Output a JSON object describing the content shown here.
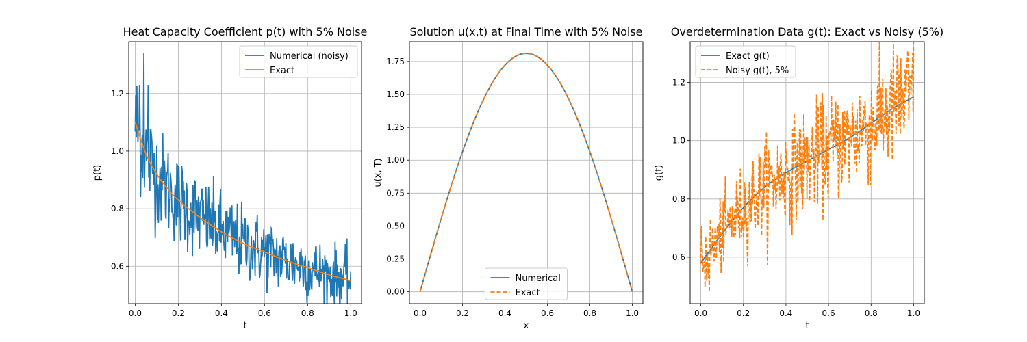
{
  "chart_data": [
    {
      "type": "line",
      "title": "Heat Capacity Coefficient p(t) with 5% Noise",
      "xlabel": "t",
      "ylabel": "p(t)",
      "xlim": [
        -0.03,
        1.05
      ],
      "ylim": [
        0.47,
        1.38
      ],
      "xticks": [
        0.0,
        0.2,
        0.4,
        0.6,
        0.8,
        1.0
      ],
      "yticks": [
        0.6,
        0.8,
        1.0,
        1.2
      ],
      "grid": true,
      "legend_position": "upper right",
      "series": [
        {
          "name": "Numerical (noisy)",
          "color": "#1f77b4",
          "style": "solid",
          "model": "exact_plus_noise",
          "points": 400,
          "noise_fraction": 0.05,
          "highlights": [
            [
              0.04,
              1.34
            ],
            [
              0.06,
              1.23
            ],
            [
              0.02,
              1.23
            ]
          ]
        },
        {
          "name": "Exact",
          "color": "#ff7f0e",
          "style": "solid",
          "x": [
            0.0,
            0.05,
            0.1,
            0.15,
            0.2,
            0.3,
            0.4,
            0.5,
            0.6,
            0.7,
            0.8,
            0.9,
            1.0
          ],
          "y": [
            1.1,
            0.99,
            0.92,
            0.87,
            0.83,
            0.77,
            0.72,
            0.68,
            0.65,
            0.62,
            0.595,
            0.57,
            0.55
          ]
        }
      ]
    },
    {
      "type": "line",
      "title": "Solution u(x,t) at Final Time with 5% Noise",
      "xlabel": "x",
      "ylabel": "u(x, T)",
      "xlim": [
        -0.05,
        1.05
      ],
      "ylim": [
        -0.09,
        1.9
      ],
      "xticks": [
        0.0,
        0.2,
        0.4,
        0.6,
        0.8,
        1.0
      ],
      "yticks": [
        0.0,
        0.25,
        0.5,
        0.75,
        1.0,
        1.25,
        1.5,
        1.75
      ],
      "grid": true,
      "legend_position": "lower center",
      "series": [
        {
          "name": "Numerical",
          "color": "#1f77b4",
          "style": "solid",
          "x": [
            0.0,
            0.05,
            0.1,
            0.15,
            0.2,
            0.25,
            0.3,
            0.35,
            0.4,
            0.45,
            0.5,
            0.55,
            0.6,
            0.65,
            0.7,
            0.75,
            0.8,
            0.85,
            0.9,
            0.95,
            1.0
          ],
          "y": [
            0.0,
            0.283,
            0.559,
            0.822,
            1.064,
            1.28,
            1.465,
            1.614,
            1.722,
            1.789,
            1.811,
            1.789,
            1.722,
            1.614,
            1.465,
            1.28,
            1.064,
            0.822,
            0.559,
            0.283,
            0.0
          ]
        },
        {
          "name": "Exact",
          "color": "#ff7f0e",
          "style": "dashed",
          "x": [
            0.0,
            0.05,
            0.1,
            0.15,
            0.2,
            0.25,
            0.3,
            0.35,
            0.4,
            0.45,
            0.5,
            0.55,
            0.6,
            0.65,
            0.7,
            0.75,
            0.8,
            0.85,
            0.9,
            0.95,
            1.0
          ],
          "y": [
            0.0,
            0.284,
            0.56,
            0.823,
            1.066,
            1.282,
            1.467,
            1.616,
            1.724,
            1.791,
            1.813,
            1.791,
            1.724,
            1.616,
            1.467,
            1.282,
            1.066,
            0.823,
            0.56,
            0.284,
            0.0
          ]
        }
      ]
    },
    {
      "type": "line",
      "title": "Overdetermination Data g(t): Exact vs Noisy (5%)",
      "xlabel": "t",
      "ylabel": "g(t)",
      "xlim": [
        -0.05,
        1.05
      ],
      "ylim": [
        0.44,
        1.34
      ],
      "xticks": [
        0.0,
        0.2,
        0.4,
        0.6,
        0.8,
        1.0
      ],
      "yticks": [
        0.6,
        0.8,
        1.0,
        1.2
      ],
      "grid": true,
      "legend_position": "upper left",
      "series": [
        {
          "name": "Exact g(t)",
          "color": "#1f77b4",
          "style": "solid",
          "x": [
            0.0,
            0.1,
            0.2,
            0.3,
            0.4,
            0.5,
            0.6,
            0.7,
            0.8,
            0.9,
            1.0
          ],
          "y": [
            0.58,
            0.68,
            0.77,
            0.84,
            0.89,
            0.93,
            0.97,
            1.01,
            1.06,
            1.11,
            1.15
          ]
        },
        {
          "name": "Noisy g(t), 5%",
          "color": "#ff7f0e",
          "style": "dashed",
          "model": "exact_plus_noise",
          "points": 400,
          "noise_fraction": 0.05,
          "highlights": [
            [
              0.04,
              0.48
            ],
            [
              0.995,
              1.3
            ],
            [
              0.01,
              0.55
            ]
          ]
        }
      ]
    }
  ]
}
